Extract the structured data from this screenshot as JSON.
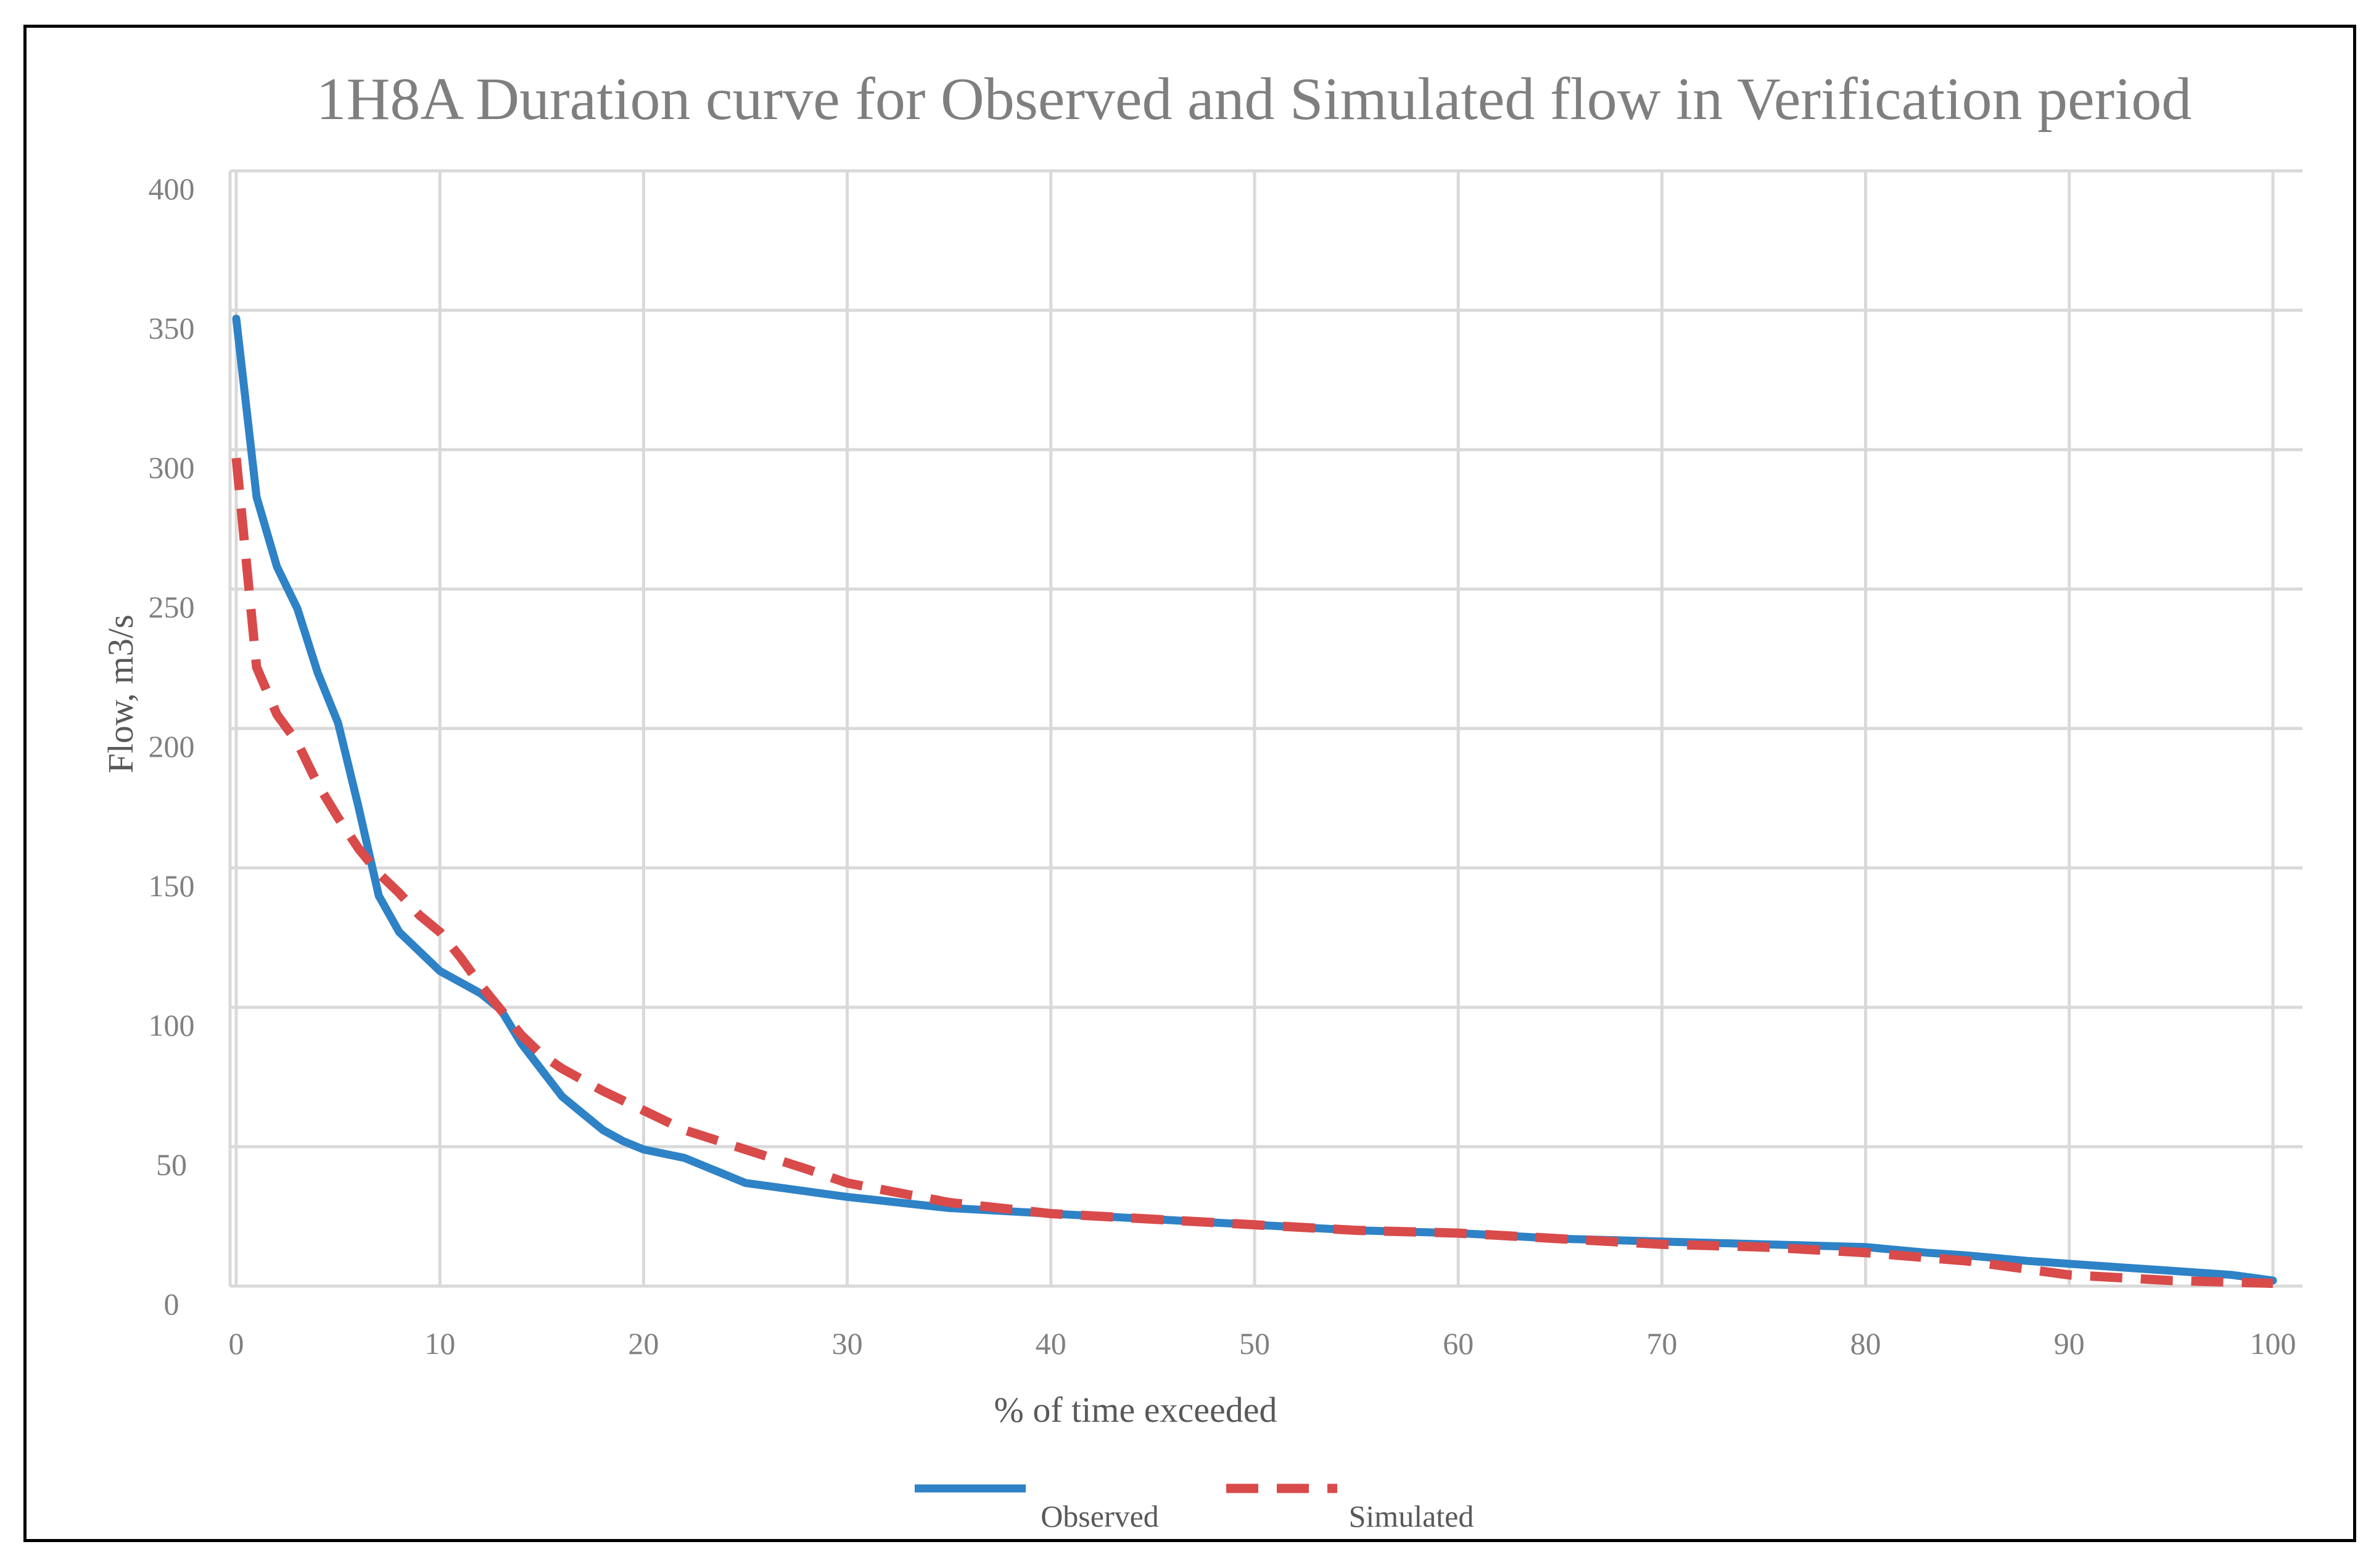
{
  "chart_data": {
    "type": "line",
    "title": "1H8A Duration curve for Observed and Simulated flow in Verification period",
    "xlabel": "% of time exceeded",
    "ylabel": "Flow, m3/s",
    "xlim": [
      0,
      100
    ],
    "ylim": [
      0,
      400
    ],
    "xticks": [
      0,
      10,
      20,
      30,
      40,
      50,
      60,
      70,
      80,
      90,
      100
    ],
    "yticks": [
      0,
      50,
      100,
      150,
      200,
      250,
      300,
      350,
      400
    ],
    "grid": true,
    "legend_position": "bottom",
    "series": [
      {
        "name": "Observed",
        "color": "#2e82c6",
        "dash": "solid",
        "x": [
          0,
          1,
          2,
          3,
          4,
          5,
          6,
          7,
          8,
          9,
          10,
          12,
          13,
          14,
          16,
          17,
          18,
          19,
          20,
          22,
          24,
          25,
          27,
          30,
          35,
          40,
          45,
          50,
          55,
          60,
          65,
          70,
          75,
          80,
          83,
          85,
          88,
          90,
          92,
          94,
          96,
          98,
          100
        ],
        "values": [
          347,
          283,
          258,
          243,
          220,
          202,
          172,
          140,
          127,
          120,
          113,
          105,
          99,
          87,
          68,
          62,
          56,
          52,
          49,
          46,
          40,
          37,
          35,
          32,
          28,
          26,
          24,
          22,
          20,
          19,
          17,
          16,
          15,
          14,
          12,
          11,
          9,
          8,
          7,
          6,
          5,
          4,
          2
        ]
      },
      {
        "name": "Simulated",
        "color": "#d94a4a",
        "dash": "dashed",
        "x": [
          0,
          1,
          2,
          3,
          4,
          5,
          6,
          7,
          8,
          9,
          10,
          11,
          12,
          13,
          14,
          15,
          16,
          18,
          20,
          22,
          25,
          28,
          30,
          35,
          40,
          45,
          50,
          55,
          60,
          65,
          70,
          75,
          80,
          85,
          90,
          95,
          100
        ],
        "values": [
          297,
          222,
          205,
          195,
          180,
          168,
          157,
          148,
          141,
          133,
          127,
          118,
          108,
          99,
          90,
          83,
          78,
          70,
          63,
          56,
          49,
          42,
          37,
          30,
          26,
          24,
          22,
          20,
          19,
          17,
          15,
          14,
          12,
          9,
          4,
          2,
          1
        ]
      }
    ]
  }
}
